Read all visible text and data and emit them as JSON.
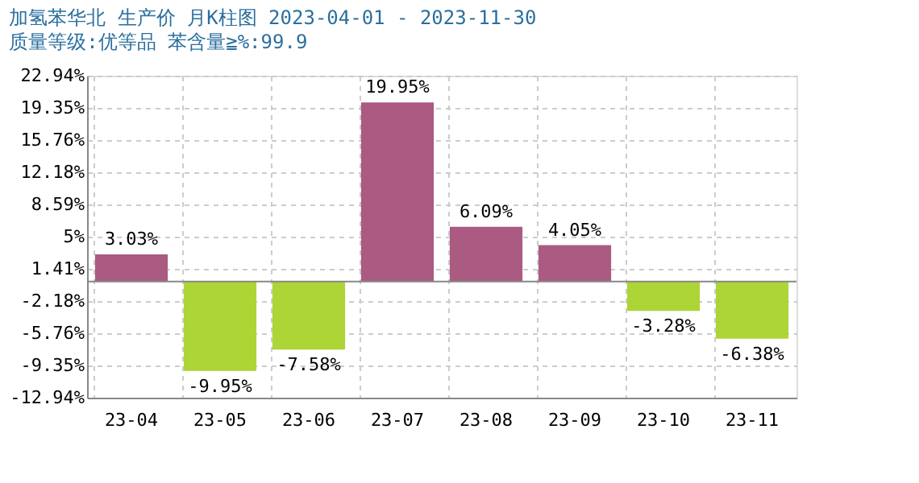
{
  "chart_data": {
    "type": "bar",
    "title": "加氢苯华北 生产价 月K柱图 2023-04-01 - 2023-11-30",
    "subtitle": "质量等级:优等品 苯含量≧%:99.9",
    "categories": [
      "23-04",
      "23-05",
      "23-06",
      "23-07",
      "23-08",
      "23-09",
      "23-10",
      "23-11"
    ],
    "values": [
      3.03,
      -9.95,
      -7.58,
      19.95,
      6.09,
      4.05,
      -3.28,
      -6.38
    ],
    "colors": [
      "#ab5a82",
      "#acd535",
      "#acd535",
      "#ab5a82",
      "#ab5a82",
      "#ab5a82",
      "#acd535",
      "#acd535"
    ],
    "value_labels": [
      "3.03%",
      "-9.95%",
      "-7.58%",
      "19.95%",
      "6.09%",
      "4.05%",
      "-3.28%",
      "-6.38%"
    ],
    "ylim": [
      -12.94,
      22.94
    ],
    "yticks": [
      {
        "value": 22.94,
        "label": "22.94%"
      },
      {
        "value": 19.35,
        "label": "19.35%"
      },
      {
        "value": 15.76,
        "label": "15.76%"
      },
      {
        "value": 12.18,
        "label": "12.18%"
      },
      {
        "value": 8.59,
        "label": "8.59%"
      },
      {
        "value": 5,
        "label": "5%"
      },
      {
        "value": 1.41,
        "label": "1.41%"
      },
      {
        "value": -2.18,
        "label": "-2.18%"
      },
      {
        "value": -5.76,
        "label": "-5.76%"
      },
      {
        "value": -9.35,
        "label": "-9.35%"
      },
      {
        "value": -12.94,
        "label": "-12.94%"
      }
    ],
    "ref_lines": [
      {
        "axis": "y",
        "value": 0,
        "color": "#888888",
        "line_style": "solid"
      }
    ],
    "grid": true
  }
}
